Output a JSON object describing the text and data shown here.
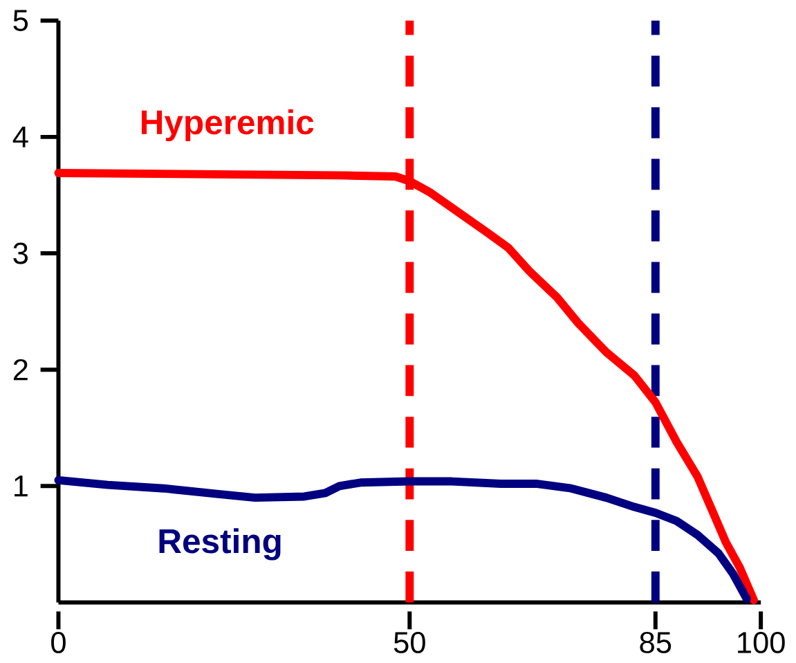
{
  "chart_data": {
    "type": "line",
    "series": [
      {
        "name": "Hyperemic",
        "color": "#ff0000",
        "x": [
          0,
          20,
          40,
          48,
          50,
          53,
          57,
          61,
          64,
          67,
          71,
          74,
          78,
          82,
          85,
          88,
          91,
          93,
          95,
          97,
          99
        ],
        "values": [
          3.69,
          3.68,
          3.67,
          3.66,
          3.62,
          3.52,
          3.35,
          3.18,
          3.05,
          2.85,
          2.62,
          2.4,
          2.15,
          1.95,
          1.72,
          1.38,
          1.08,
          0.8,
          0.52,
          0.3,
          0.02
        ]
      },
      {
        "name": "Resting",
        "color": "#000080",
        "x": [
          0,
          7,
          15,
          23,
          28,
          35,
          38,
          40,
          43,
          50,
          56,
          63,
          68,
          73,
          78,
          82,
          85,
          88,
          91,
          94,
          96,
          98
        ],
        "values": [
          1.05,
          1.01,
          0.98,
          0.93,
          0.9,
          0.91,
          0.94,
          1.0,
          1.03,
          1.04,
          1.04,
          1.02,
          1.02,
          0.98,
          0.9,
          0.82,
          0.77,
          0.7,
          0.58,
          0.42,
          0.25,
          0.03
        ]
      }
    ],
    "xlim": [
      0,
      100
    ],
    "ylim": [
      0,
      5
    ],
    "xticks": [
      0,
      50,
      85,
      100
    ],
    "yticks": [
      1,
      2,
      3,
      4,
      5
    ],
    "ref_lines": [
      {
        "axis": "x",
        "value": 50,
        "color": "#ff0000",
        "line_style": "dashed"
      },
      {
        "axis": "x",
        "value": 85,
        "color": "#000080",
        "line_style": "dashed"
      }
    ],
    "grid": false,
    "marker": "none",
    "line_style": "solid"
  }
}
